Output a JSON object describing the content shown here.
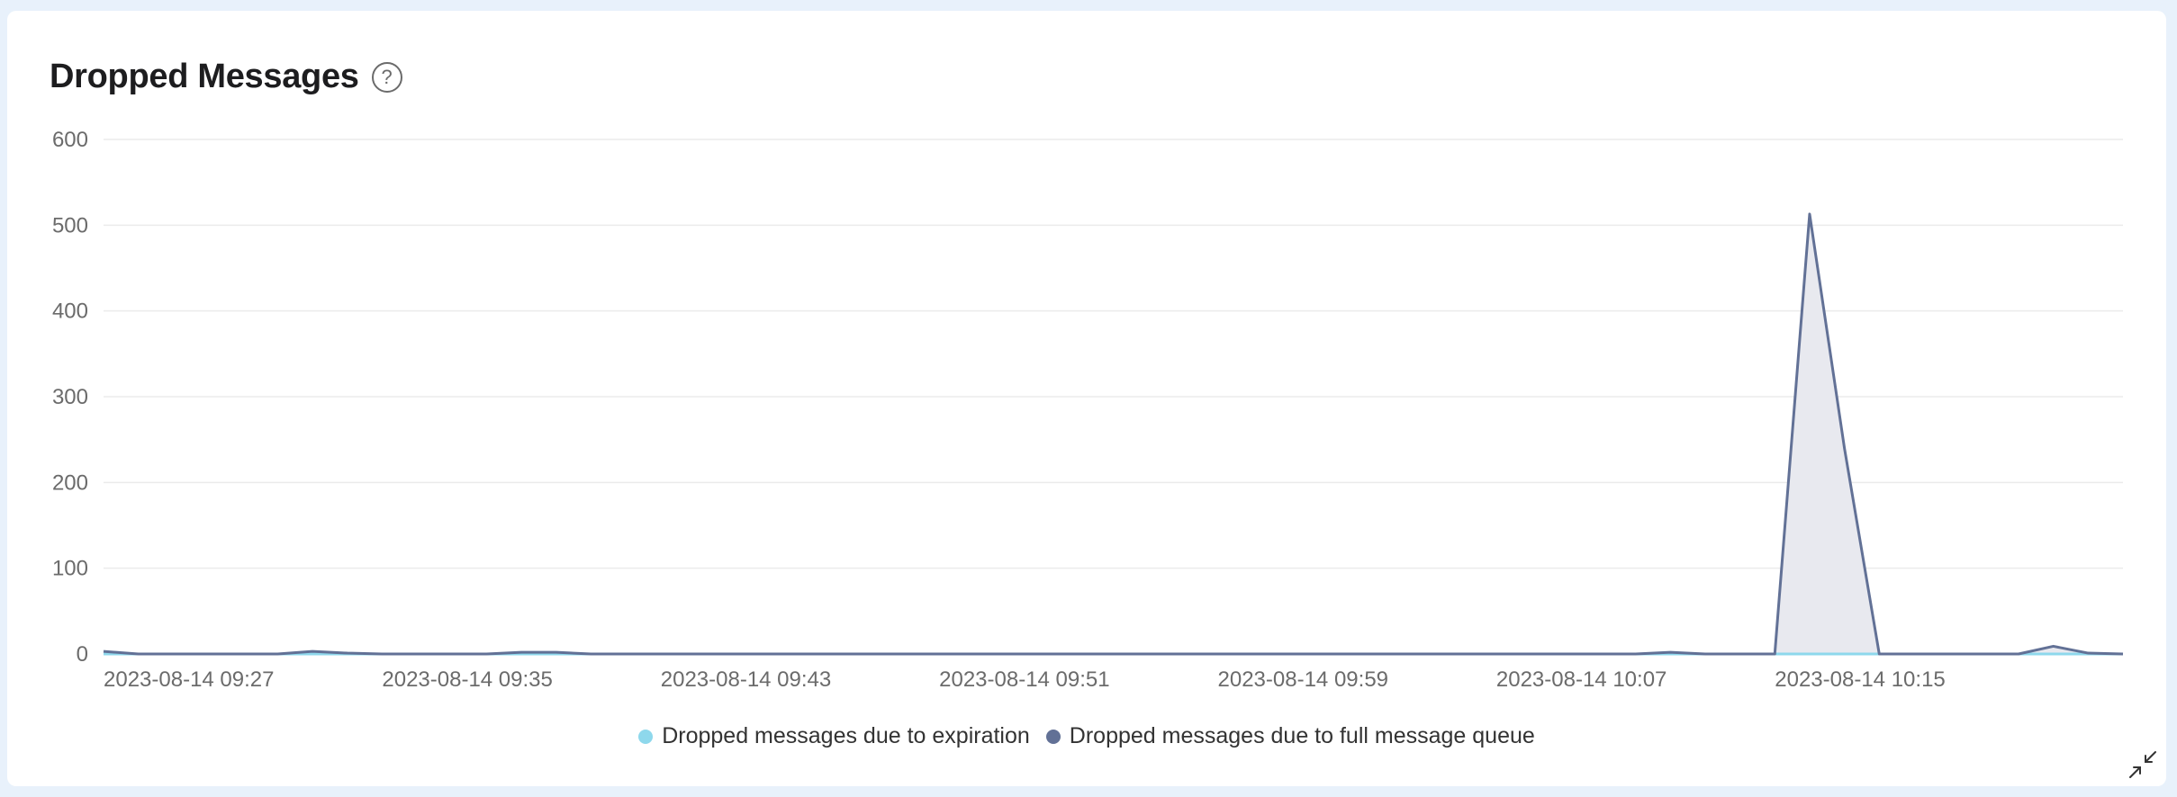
{
  "panel": {
    "title": "Dropped Messages",
    "help_icon": "question-circle-icon",
    "collapse_icon": "collapse-arrows-icon"
  },
  "colors": {
    "expiration": "#8ed8ec",
    "full_queue": "#627196",
    "full_queue_fill": "#e8e9ef",
    "grid": "#ebebeb",
    "tick_text": "#6b6b6b"
  },
  "chart_data": {
    "type": "area",
    "title": "Dropped Messages",
    "xlabel": "",
    "ylabel": "",
    "ylim": [
      0,
      600
    ],
    "yticks": [
      0,
      100,
      200,
      300,
      400,
      500,
      600
    ],
    "xticks": [
      "2023-08-14 09:27",
      "2023-08-14 09:35",
      "2023-08-14 09:43",
      "2023-08-14 09:51",
      "2023-08-14 09:59",
      "2023-08-14 10:07",
      "2023-08-14 10:15"
    ],
    "x": [
      "09:27",
      "09:28",
      "09:29",
      "09:30",
      "09:31",
      "09:32",
      "09:33",
      "09:34",
      "09:35",
      "09:36",
      "09:37",
      "09:38",
      "09:39",
      "09:40",
      "09:41",
      "09:42",
      "09:43",
      "09:44",
      "09:45",
      "09:46",
      "09:47",
      "09:48",
      "09:49",
      "09:50",
      "09:51",
      "09:52",
      "09:53",
      "09:54",
      "09:55",
      "09:56",
      "09:57",
      "09:58",
      "09:59",
      "10:00",
      "10:01",
      "10:02",
      "10:03",
      "10:04",
      "10:05",
      "10:06",
      "10:07",
      "10:08",
      "10:09",
      "10:10",
      "10:11",
      "10:12",
      "10:13",
      "10:14",
      "10:15",
      "10:16",
      "10:17",
      "10:18",
      "10:19",
      "10:20",
      "10:21",
      "10:22",
      "10:23",
      "10:24",
      "10:25"
    ],
    "legend_position": "bottom",
    "grid": true,
    "series": [
      {
        "name": "Dropped messages due to expiration",
        "values": [
          0,
          0,
          0,
          0,
          0,
          0,
          0,
          0,
          0,
          0,
          0,
          0,
          0,
          0,
          0,
          0,
          0,
          0,
          0,
          0,
          0,
          0,
          0,
          0,
          0,
          0,
          0,
          0,
          0,
          0,
          0,
          0,
          0,
          0,
          0,
          0,
          0,
          0,
          0,
          0,
          0,
          0,
          0,
          0,
          0,
          0,
          0,
          0,
          0,
          0,
          0,
          0,
          0,
          0,
          0,
          0,
          0,
          0,
          0
        ]
      },
      {
        "name": "Dropped messages due to full message queue",
        "values": [
          3,
          0,
          0,
          0,
          0,
          0,
          3,
          1,
          0,
          0,
          0,
          0,
          2,
          2,
          0,
          0,
          0,
          0,
          0,
          0,
          0,
          0,
          0,
          0,
          0,
          0,
          0,
          0,
          0,
          0,
          0,
          0,
          0,
          0,
          0,
          0,
          0,
          0,
          0,
          0,
          0,
          0,
          0,
          0,
          0,
          2,
          0,
          0,
          0,
          513,
          240,
          0,
          0,
          0,
          0,
          0,
          9,
          1,
          0
        ]
      }
    ]
  }
}
